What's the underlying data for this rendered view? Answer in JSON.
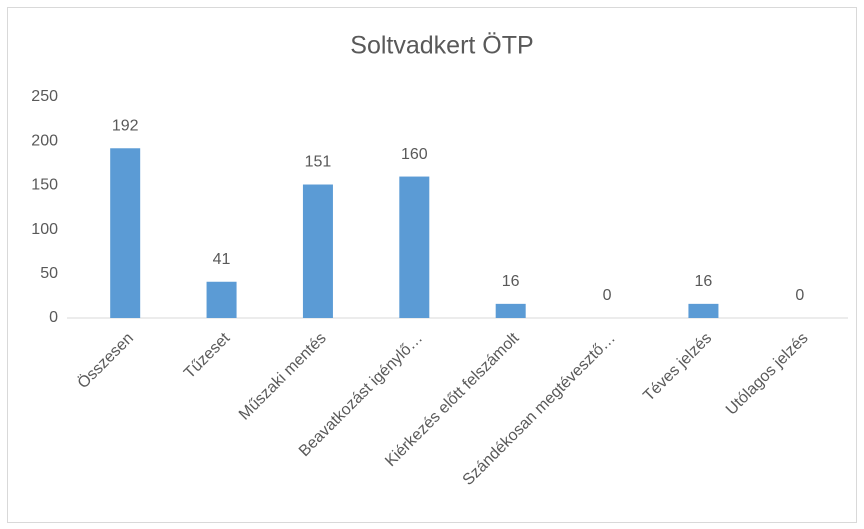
{
  "chart_data": {
    "type": "bar",
    "title": "Soltvadkert ÖTP",
    "categories": [
      "Összesen",
      "Tűzeset",
      "Műszaki mentés",
      "Beavatkozást igénylő…",
      "Kiérkezés előtt felszámolt",
      "Szándékosan megtévesztő…",
      "Téves jelzés",
      "Utólagos jelzés"
    ],
    "values": [
      192,
      41,
      151,
      160,
      16,
      0,
      16,
      0
    ],
    "color": "#5b9bd5",
    "ylim": [
      0,
      250
    ],
    "yticks": [
      0,
      50,
      100,
      150,
      200,
      250
    ],
    "grid": false
  }
}
